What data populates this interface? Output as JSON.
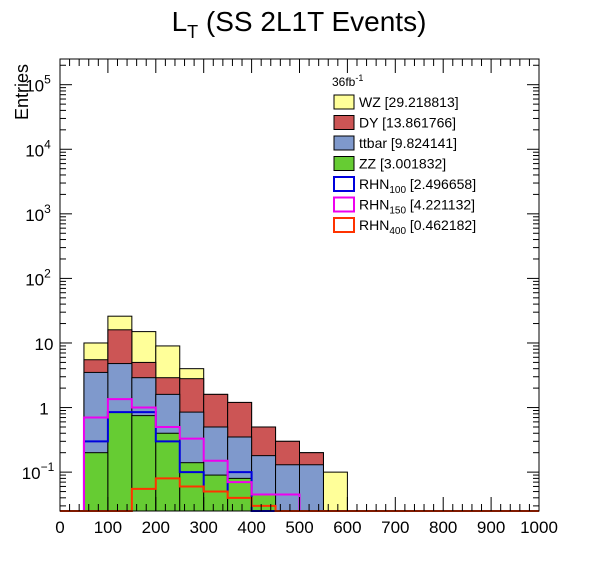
{
  "chart_data": {
    "type": "bar",
    "title": "L",
    "title_sub": "T",
    "title_rest": " (SS 2L1T Events)",
    "ylabel": "Entries",
    "xlabel": "",
    "xlim": [
      0,
      1000
    ],
    "ylim": [
      0.025,
      250000
    ],
    "yscale": "log",
    "bin_edges": [
      0,
      50,
      100,
      150,
      200,
      250,
      300,
      350,
      400,
      450,
      500,
      550,
      600,
      650,
      700,
      750,
      800,
      850,
      900,
      950,
      1000
    ],
    "x_ticks": [
      0,
      100,
      200,
      300,
      400,
      500,
      600,
      700,
      800,
      900,
      1000
    ],
    "x_tick_labels": [
      "0",
      "100",
      "200",
      "300",
      "400",
      "500",
      "600",
      "700",
      "800",
      "900",
      "1000"
    ],
    "y_ticks": [
      0.1,
      1,
      10,
      100,
      1000,
      10000,
      100000
    ],
    "y_tick_labels": [
      {
        "base": "10",
        "exp": "−1"
      },
      {
        "base": "1",
        "exp": ""
      },
      {
        "base": "10",
        "exp": ""
      },
      {
        "base": "10",
        "exp": "2"
      },
      {
        "base": "10",
        "exp": "3"
      },
      {
        "base": "10",
        "exp": "4"
      },
      {
        "base": "10",
        "exp": "5"
      }
    ],
    "stack_totals": [
      {
        "name": "WZ",
        "label": "WZ [29.218813]",
        "fill": "#ffff99",
        "values": [
          0,
          10,
          26,
          15,
          9,
          4,
          1.6,
          1.2,
          0.5,
          0.3,
          0.2,
          0.1,
          0,
          0,
          0,
          0,
          0,
          0,
          0,
          0
        ]
      },
      {
        "name": "DY",
        "label": "DY [13.861766]",
        "fill": "#cc5555",
        "values": [
          0,
          5.5,
          16,
          5,
          2.9,
          2.8,
          1.6,
          1.2,
          0.5,
          0.3,
          0.2,
          0,
          0,
          0,
          0,
          0,
          0,
          0,
          0,
          0
        ]
      },
      {
        "name": "ttbar",
        "label": "ttbar [9.824141]",
        "fill": "#7f99cc",
        "values": [
          0,
          3.5,
          4.8,
          2.9,
          1.6,
          0.85,
          0.5,
          0.35,
          0.18,
          0.13,
          0.13,
          0,
          0,
          0,
          0,
          0,
          0,
          0,
          0,
          0
        ]
      },
      {
        "name": "ZZ",
        "label": "ZZ [3.001832]",
        "fill": "#66cc33",
        "values": [
          0,
          0.2,
          0.85,
          0.75,
          0.4,
          0.14,
          0.09,
          0.08,
          0.045,
          0,
          0,
          0,
          0,
          0,
          0,
          0,
          0,
          0,
          0,
          0
        ]
      }
    ],
    "signals": [
      {
        "name": "RHN100",
        "base": "RHN",
        "sub": "100",
        "value_label": " [2.496658]",
        "color": "#0000dd",
        "values": [
          0,
          0.3,
          0.85,
          0.85,
          0.3,
          0.1,
          0.05,
          0.1,
          0.025,
          0,
          0,
          0,
          0,
          0,
          0,
          0,
          0,
          0,
          0,
          0
        ]
      },
      {
        "name": "RHN150",
        "base": "RHN",
        "sub": "150",
        "value_label": " [4.221132]",
        "color": "#ee00ee",
        "values": [
          0,
          0.7,
          1.35,
          1.0,
          0.5,
          0.33,
          0.15,
          0.07,
          0.045,
          0.045,
          0,
          0,
          0,
          0,
          0,
          0,
          0,
          0,
          0,
          0
        ]
      },
      {
        "name": "RHN400",
        "base": "RHN",
        "sub": "400",
        "value_label": " [0.462182]",
        "color": "#ff3300",
        "values": [
          0.025,
          0.025,
          0.025,
          0.055,
          0.08,
          0.06,
          0.05,
          0.04,
          0.03,
          0.025,
          0.025,
          0.025,
          0.025,
          0.025,
          0.025,
          0.025,
          0.025,
          0.025,
          0.025,
          0.025
        ]
      }
    ],
    "lumi_base": "36fb",
    "lumi_exp": "-1"
  }
}
